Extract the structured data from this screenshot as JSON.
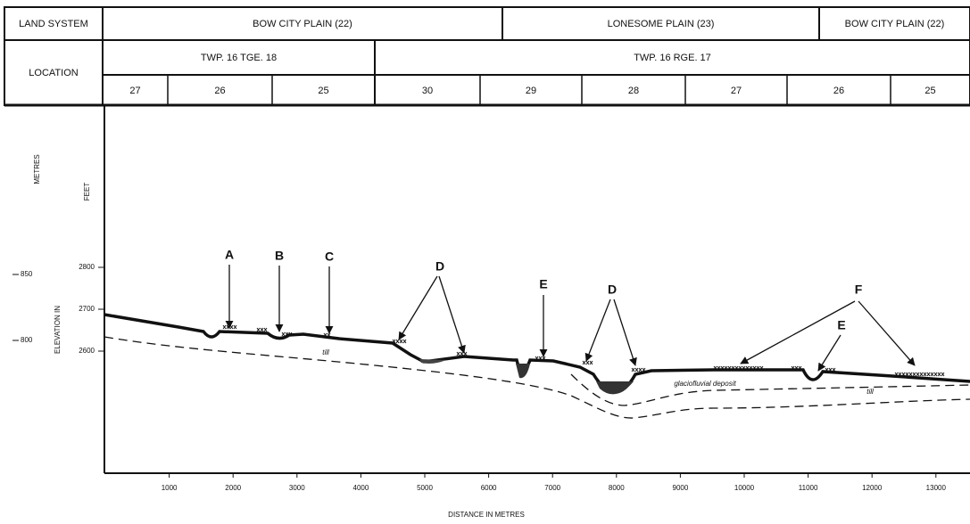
{
  "header": {
    "land_system_label": "LAND SYSTEM",
    "land_systems": [
      "BOW CITY PLAIN (22)",
      "LONESOME PLAIN (23)",
      "BOW CITY PLAIN (22)"
    ],
    "location_label": "LOCATION",
    "townships": [
      "TWP. 16 TGE. 18",
      "TWP. 16 RGE. 17"
    ],
    "sections": [
      27,
      26,
      25,
      30,
      29,
      28,
      27,
      26,
      25
    ]
  },
  "profile": {
    "metres_label": "METRES",
    "feet_label": "FEET",
    "elevation_label": "ELEVATION IN",
    "metres_ticks": [
      850,
      800
    ],
    "feet_ticks": [
      2800,
      2700,
      2600
    ],
    "distance_ticks": [
      1000,
      2000,
      3000,
      4000,
      5000,
      6000,
      7000,
      8000,
      9000,
      10000,
      11000,
      12000,
      13000
    ],
    "distance_label": "DISTANCE IN METRES",
    "markers": [
      "A",
      "B",
      "C",
      "D",
      "E",
      "D",
      "F",
      "E"
    ],
    "deposits": [
      "till",
      "glaciofluvial deposit",
      "till"
    ]
  }
}
